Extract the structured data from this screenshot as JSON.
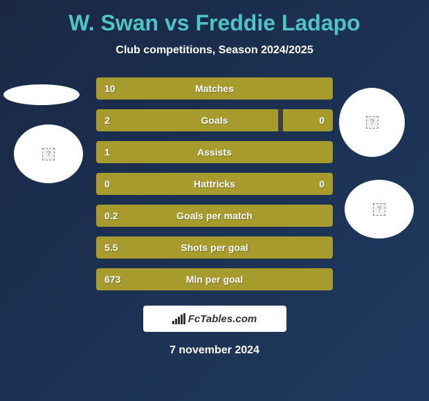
{
  "title": "W. Swan vs Freddie Ladapo",
  "subtitle": "Club competitions, Season 2024/2025",
  "colors": {
    "background_gradient_start": "#1a2845",
    "background_gradient_end": "#1e3a5f",
    "title_color": "#4fc3c7",
    "text_color": "#ffffff",
    "bar_fill": "#a89b2e",
    "bar_bg": "#3f3f3f",
    "circle_bg": "#ffffff"
  },
  "stats": [
    {
      "label": "Matches",
      "left_value": "10",
      "right_value": "",
      "left_width": 100,
      "right_width": 0,
      "show_right": false
    },
    {
      "label": "Goals",
      "left_value": "2",
      "right_value": "0",
      "left_width": 77,
      "right_width": 21,
      "show_right": true
    },
    {
      "label": "Assists",
      "left_value": "1",
      "right_value": "",
      "left_width": 100,
      "right_width": 0,
      "show_right": false
    },
    {
      "label": "Hattricks",
      "left_value": "0",
      "right_value": "0",
      "left_width": 50,
      "right_width": 50,
      "show_right": true
    },
    {
      "label": "Goals per match",
      "left_value": "0.2",
      "right_value": "",
      "left_width": 100,
      "right_width": 0,
      "show_right": false
    },
    {
      "label": "Shots per goal",
      "left_value": "5.5",
      "right_value": "",
      "left_width": 100,
      "right_width": 0,
      "show_right": false
    },
    {
      "label": "Min per goal",
      "left_value": "673",
      "right_value": "",
      "left_width": 100,
      "right_width": 0,
      "show_right": false
    }
  ],
  "footer": {
    "brand": "FcTables.com",
    "date": "7 november 2024"
  },
  "circles": [
    {
      "id": "circle-1",
      "has_icon": false
    },
    {
      "id": "circle-2",
      "has_icon": true
    },
    {
      "id": "circle-3",
      "has_icon": true
    },
    {
      "id": "circle-4",
      "has_icon": true
    }
  ]
}
